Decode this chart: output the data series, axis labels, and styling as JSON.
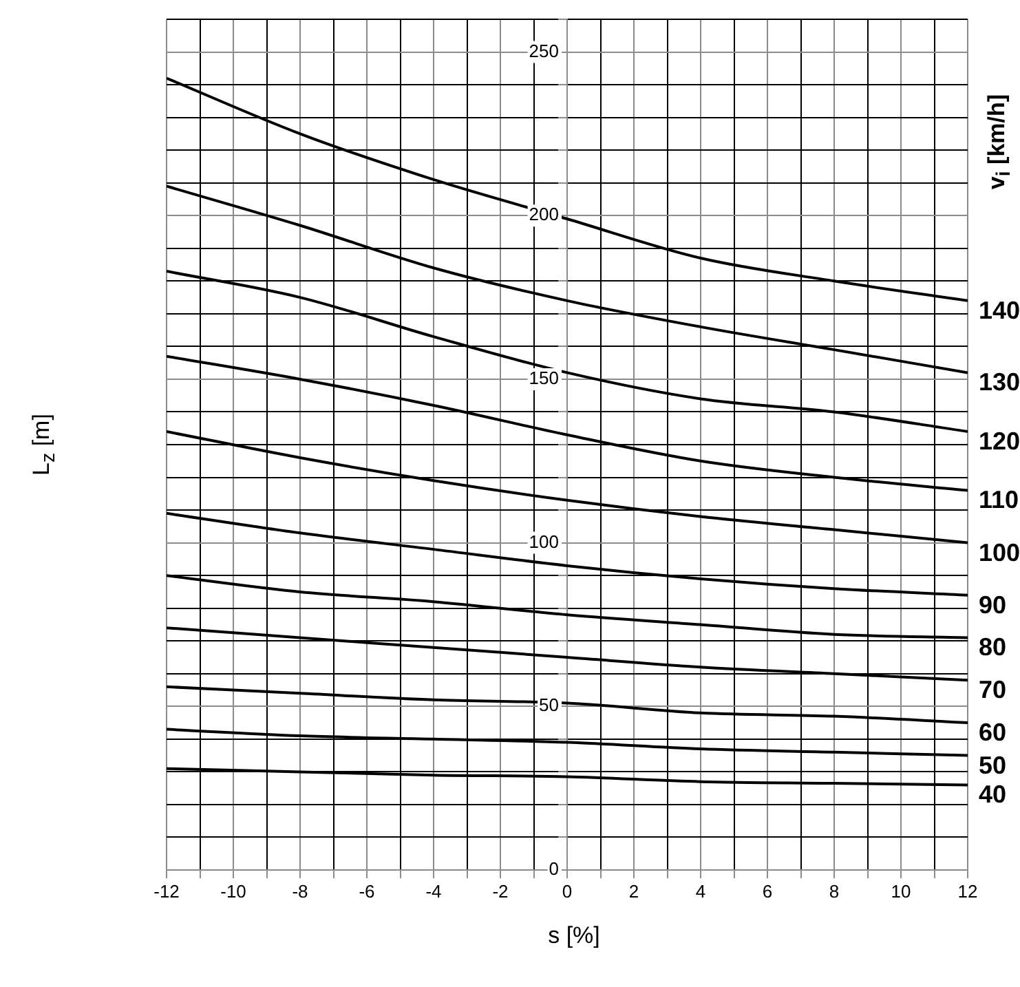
{
  "chart_data": {
    "type": "line",
    "xlabel": "s [%]",
    "ylabel": "L$_{z}$ [m]",
    "legend_title": "v$_{i}$ [km/h]",
    "x": [
      -12,
      -8,
      -4,
      0,
      4,
      8,
      12
    ],
    "xlim": [
      -12,
      12
    ],
    "xticks": [
      -12,
      {
        "value": -11,
        "label": null
      },
      -10,
      {
        "value": -9,
        "label": null
      },
      -8,
      {
        "value": -7,
        "label": null
      },
      -6,
      {
        "value": -5,
        "label": null
      },
      -4,
      {
        "value": -3,
        "label": null
      },
      -2,
      {
        "value": -1,
        "label": null
      },
      0,
      {
        "value": 1,
        "label": null
      },
      2,
      {
        "value": 3,
        "label": null
      },
      4,
      {
        "value": 5,
        "label": null
      },
      6,
      {
        "value": 7,
        "label": null
      },
      8,
      {
        "value": 9,
        "label": null
      },
      10,
      {
        "value": 11,
        "label": null
      },
      12
    ],
    "ylim": [
      0,
      260
    ],
    "yticks": [
      0,
      {
        "value": 10,
        "label": null
      },
      {
        "value": 20,
        "label": null
      },
      {
        "value": 30,
        "label": null
      },
      {
        "value": 40,
        "label": null
      },
      50,
      {
        "value": 60,
        "label": null
      },
      {
        "value": 70,
        "label": null
      },
      {
        "value": 80,
        "label": null
      },
      {
        "value": 90,
        "label": null
      },
      100,
      {
        "value": 110,
        "label": null
      },
      {
        "value": 120,
        "label": null
      },
      {
        "value": 130,
        "label": null
      },
      {
        "value": 140,
        "label": null
      },
      150,
      {
        "value": 160,
        "label": null
      },
      {
        "value": 170,
        "label": null
      },
      {
        "value": 180,
        "label": null
      },
      {
        "value": 190,
        "label": null
      },
      200,
      {
        "value": 210,
        "label": null
      },
      {
        "value": 220,
        "label": null
      },
      {
        "value": 230,
        "label": null
      },
      {
        "value": 240,
        "label": null
      },
      250,
      {
        "value": 260,
        "label": null
      }
    ],
    "grid": true,
    "legend": false,
    "marker": "none",
    "line_style": "solid",
    "series": [
      {
        "name": "140",
        "color": "#000000",
        "values": [
          242,
          225,
          211,
          199,
          187,
          180,
          174
        ]
      },
      {
        "name": "130",
        "color": "#000000",
        "values": [
          209,
          197,
          184,
          174,
          166,
          159,
          152
        ]
      },
      {
        "name": "120",
        "color": "#000000",
        "values": [
          183,
          175,
          163,
          152,
          144,
          140,
          134
        ]
      },
      {
        "name": "110",
        "color": "#000000",
        "values": [
          157,
          150,
          142,
          133,
          125,
          120,
          116
        ]
      },
      {
        "name": "100",
        "color": "#000000",
        "values": [
          134,
          126,
          119,
          113,
          108,
          104,
          100
        ]
      },
      {
        "name": "90",
        "color": "#000000",
        "values": [
          109,
          103,
          98,
          93,
          89,
          86,
          84
        ]
      },
      {
        "name": "80",
        "color": "#000000",
        "values": [
          90,
          85,
          82,
          78,
          75,
          72,
          71
        ]
      },
      {
        "name": "70",
        "color": "#000000",
        "values": [
          74,
          71,
          68,
          65,
          62,
          60,
          58
        ]
      },
      {
        "name": "60",
        "color": "#000000",
        "values": [
          56,
          54,
          52,
          51,
          48,
          47,
          45
        ]
      },
      {
        "name": "50",
        "color": "#000000",
        "values": [
          43,
          41,
          40,
          39,
          37,
          36,
          35
        ]
      },
      {
        "name": "40",
        "color": "#000000",
        "values": [
          31,
          30,
          29,
          28.5,
          27,
          26.5,
          26
        ]
      }
    ]
  }
}
